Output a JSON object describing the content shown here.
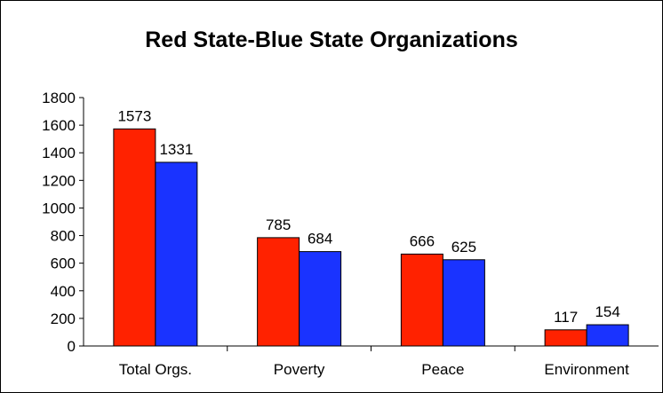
{
  "chart_data": {
    "type": "bar",
    "title": "Red State-Blue State Organizations",
    "categories": [
      "Total Orgs.",
      "Poverty",
      "Peace",
      "Environment"
    ],
    "series": [
      {
        "values": [
          1573,
          785,
          666,
          117
        ],
        "color": "#ff2200"
      },
      {
        "values": [
          1331,
          684,
          625,
          154
        ],
        "color": "#1a33ff"
      }
    ],
    "yticks": [
      "0",
      "200",
      "400",
      "600",
      "800",
      "1000",
      "1200",
      "1400",
      "1600",
      "1800"
    ],
    "ylim": [
      0,
      1800
    ],
    "grid": false,
    "legend": "none"
  }
}
